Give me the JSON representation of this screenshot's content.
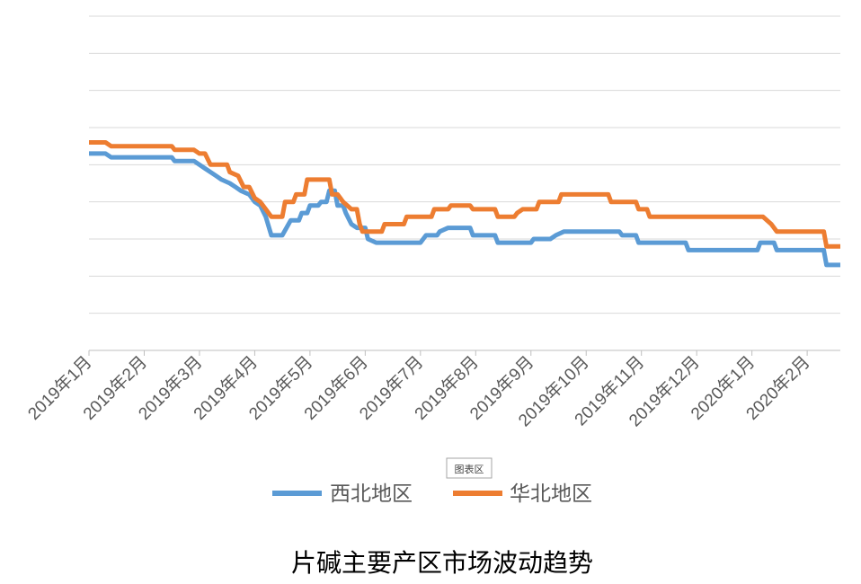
{
  "chart_data": {
    "type": "line",
    "title": "片碱主要产区市场波动趋势",
    "area_label": "图表区",
    "legend_position": "bottom",
    "grid": "horizontal",
    "ylim": [
      0,
      9
    ],
    "y_ticks_shown": false,
    "x_tick_labels": [
      "2019年1月",
      "2019年2月",
      "2019年3月",
      "2019年4月",
      "2019年5月",
      "2019年6月",
      "2019年7月",
      "2019年8月",
      "2019年9月",
      "2019年10月",
      "2019年11月",
      "2019年12月",
      "2020年1月",
      "2020年2月"
    ],
    "xlim": [
      0,
      13.6
    ],
    "series": [
      {
        "name": "西北地区",
        "color": "#5B9BD5",
        "points": [
          [
            0,
            5.3
          ],
          [
            0.3,
            5.3
          ],
          [
            0.4,
            5.2
          ],
          [
            1.5,
            5.2
          ],
          [
            1.55,
            5.1
          ],
          [
            1.9,
            5.1
          ],
          [
            2.0,
            5.0
          ],
          [
            2.1,
            4.9
          ],
          [
            2.2,
            4.8
          ],
          [
            2.3,
            4.7
          ],
          [
            2.4,
            4.6
          ],
          [
            2.55,
            4.5
          ],
          [
            2.65,
            4.4
          ],
          [
            2.75,
            4.3
          ],
          [
            2.9,
            4.2
          ],
          [
            3.0,
            4.0
          ],
          [
            3.1,
            3.9
          ],
          [
            3.2,
            3.6
          ],
          [
            3.3,
            3.1
          ],
          [
            3.5,
            3.1
          ],
          [
            3.65,
            3.5
          ],
          [
            3.8,
            3.5
          ],
          [
            3.85,
            3.7
          ],
          [
            3.95,
            3.7
          ],
          [
            4.0,
            3.9
          ],
          [
            4.15,
            3.9
          ],
          [
            4.2,
            4.0
          ],
          [
            4.3,
            4.0
          ],
          [
            4.35,
            4.3
          ],
          [
            4.45,
            4.3
          ],
          [
            4.5,
            3.9
          ],
          [
            4.6,
            3.9
          ],
          [
            4.65,
            3.7
          ],
          [
            4.75,
            3.4
          ],
          [
            4.85,
            3.3
          ],
          [
            4.9,
            3.3
          ],
          [
            5.0,
            3.3
          ],
          [
            5.05,
            3.0
          ],
          [
            5.2,
            2.9
          ],
          [
            5.5,
            2.9
          ],
          [
            6.0,
            2.9
          ],
          [
            6.1,
            3.1
          ],
          [
            6.3,
            3.1
          ],
          [
            6.35,
            3.2
          ],
          [
            6.5,
            3.3
          ],
          [
            6.9,
            3.3
          ],
          [
            6.95,
            3.1
          ],
          [
            7.35,
            3.1
          ],
          [
            7.4,
            2.9
          ],
          [
            8.0,
            2.9
          ],
          [
            8.05,
            3.0
          ],
          [
            8.35,
            3.0
          ],
          [
            8.45,
            3.1
          ],
          [
            8.6,
            3.2
          ],
          [
            9.6,
            3.2
          ],
          [
            9.65,
            3.1
          ],
          [
            9.9,
            3.1
          ],
          [
            9.95,
            2.9
          ],
          [
            10.8,
            2.9
          ],
          [
            10.85,
            2.7
          ],
          [
            12.1,
            2.7
          ],
          [
            12.15,
            2.9
          ],
          [
            12.4,
            2.9
          ],
          [
            12.45,
            2.7
          ],
          [
            13.3,
            2.7
          ],
          [
            13.35,
            2.3
          ],
          [
            13.6,
            2.3
          ]
        ]
      },
      {
        "name": "华北地区",
        "color": "#ED7D31",
        "points": [
          [
            0,
            5.6
          ],
          [
            0.3,
            5.6
          ],
          [
            0.4,
            5.5
          ],
          [
            1.5,
            5.5
          ],
          [
            1.55,
            5.4
          ],
          [
            1.9,
            5.4
          ],
          [
            2.0,
            5.3
          ],
          [
            2.1,
            5.3
          ],
          [
            2.2,
            5.0
          ],
          [
            2.5,
            5.0
          ],
          [
            2.55,
            4.8
          ],
          [
            2.7,
            4.7
          ],
          [
            2.8,
            4.4
          ],
          [
            2.9,
            4.4
          ],
          [
            3.0,
            4.1
          ],
          [
            3.1,
            4.0
          ],
          [
            3.2,
            3.8
          ],
          [
            3.3,
            3.6
          ],
          [
            3.5,
            3.6
          ],
          [
            3.55,
            4.0
          ],
          [
            3.7,
            4.0
          ],
          [
            3.75,
            4.2
          ],
          [
            3.9,
            4.2
          ],
          [
            3.95,
            4.6
          ],
          [
            4.35,
            4.6
          ],
          [
            4.4,
            4.2
          ],
          [
            4.5,
            4.2
          ],
          [
            4.6,
            4.0
          ],
          [
            4.75,
            3.8
          ],
          [
            4.85,
            3.8
          ],
          [
            4.9,
            3.4
          ],
          [
            4.95,
            3.2
          ],
          [
            5.3,
            3.2
          ],
          [
            5.35,
            3.4
          ],
          [
            5.7,
            3.4
          ],
          [
            5.75,
            3.6
          ],
          [
            6.2,
            3.6
          ],
          [
            6.25,
            3.8
          ],
          [
            6.5,
            3.8
          ],
          [
            6.55,
            3.9
          ],
          [
            6.9,
            3.9
          ],
          [
            6.95,
            3.8
          ],
          [
            7.35,
            3.8
          ],
          [
            7.4,
            3.6
          ],
          [
            7.7,
            3.6
          ],
          [
            7.75,
            3.7
          ],
          [
            7.85,
            3.8
          ],
          [
            8.1,
            3.8
          ],
          [
            8.15,
            4.0
          ],
          [
            8.5,
            4.0
          ],
          [
            8.55,
            4.2
          ],
          [
            9.4,
            4.2
          ],
          [
            9.45,
            4.0
          ],
          [
            9.9,
            4.0
          ],
          [
            9.95,
            3.8
          ],
          [
            10.1,
            3.8
          ],
          [
            10.15,
            3.6
          ],
          [
            12.2,
            3.6
          ],
          [
            12.35,
            3.4
          ],
          [
            12.45,
            3.2
          ],
          [
            13.3,
            3.2
          ],
          [
            13.35,
            2.8
          ],
          [
            13.6,
            2.8
          ]
        ]
      }
    ]
  }
}
